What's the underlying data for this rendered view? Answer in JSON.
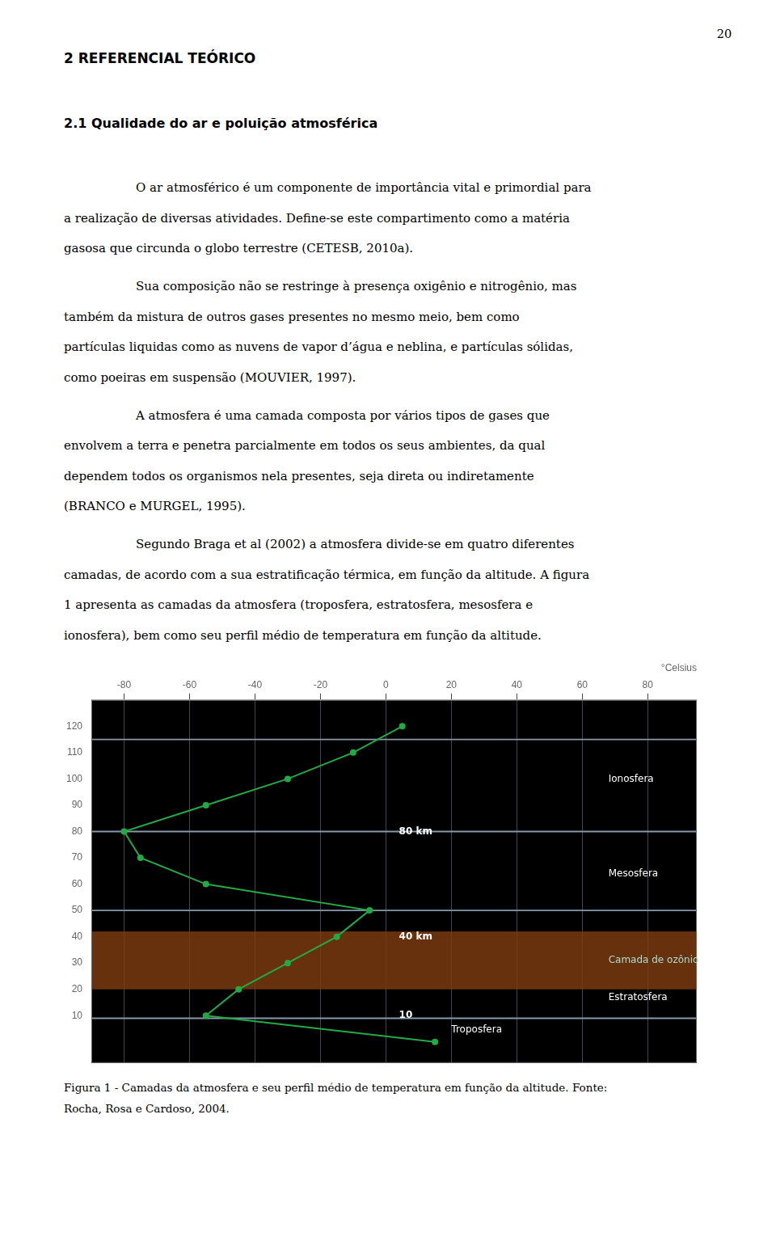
{
  "page_number": "20",
  "headings": [
    "2 REFERENCIAL TEÓRICO",
    "2.1 Qualidade do ar e poluição atmosférica"
  ],
  "paragraphs": [
    [
      "O ar atmosférico é um componente de importância vital e primordial para",
      "a realização de diversas atividades. Define-se este compartimento como a matéria",
      "gasosa que circunda o globo terrestre (CETESB, 2010a)."
    ],
    [
      "Sua composição não se restringe à presença oxigênio e nitrogênio, mas",
      "também da mistura de outros gases presentes no mesmo meio, bem como",
      "partículas liquidas como as nuvens de vapor d’água e neblina, e partículas sólidas,",
      "como poeiras em suspensão (MOUVIER, 1997)."
    ],
    [
      "A atmosfera é uma camada composta por vários tipos de gases que",
      "envolvem a terra e penetra parcialmente em todos os seus ambientes, da qual",
      "dependem todos os organismos nela presentes, seja direta ou indiretamente",
      "(BRANCO e MURGEL, 1995)."
    ],
    [
      "Segundo Braga et al (2002) a atmosfera divide-se em quatro diferentes",
      "camadas, de acordo com a sua estratificação térmica, em função da altitude. A figura",
      "1 apresenta as camadas da atmosfera (troposfera, estratosfera, mesosfera e",
      "ionosfera), bem como seu perfil médio de temperatura em função da altitude."
    ]
  ],
  "caption": [
    "Figura 1 - Camadas da atmosfera e seu perfil médio de temperatura em função da altitude. Fonte:",
    "Rocha, Rosa e Cardoso, 2004."
  ],
  "chart_data": {
    "type": "line",
    "x_label": "°Celsius",
    "x": [
      15,
      -55,
      -45,
      -30,
      -15,
      -5,
      -55,
      -75,
      -80,
      -55,
      -30,
      -10,
      5
    ],
    "values": [
      0,
      10,
      20,
      30,
      40,
      50,
      60,
      70,
      80,
      90,
      100,
      110,
      120
    ],
    "color": "#22aa44",
    "marker": "circle",
    "xlim": [
      -90,
      95
    ],
    "xticks": [
      -80,
      -60,
      -40,
      -20,
      0,
      20,
      40,
      60,
      80
    ],
    "ylim": [
      -8,
      130
    ],
    "yticks": [
      10,
      20,
      30,
      40,
      50,
      60,
      70,
      80,
      90,
      100,
      110,
      120
    ],
    "grid": "x",
    "grid_color": "#444455",
    "plot_background": "#000000",
    "bands": [
      {
        "from": 20,
        "to": 42,
        "color": "#7a3a10"
      }
    ],
    "reference_lines": {
      "values": [
        9,
        50,
        80,
        115
      ],
      "color": "#8899aa"
    },
    "annotations": [
      {
        "text": "Ionosfera",
        "x": 68,
        "y": 100,
        "color": "#ffffff"
      },
      {
        "text": "Mesosfera",
        "x": 68,
        "y": 64,
        "color": "#ffffff"
      },
      {
        "text": "Camada de ozônio",
        "x": 68,
        "y": 31,
        "color": "#aaddcc"
      },
      {
        "text": "Estratosfera",
        "x": 68,
        "y": 17,
        "color": "#ffffff"
      },
      {
        "text": "Troposfera",
        "x": 20,
        "y": 4.5,
        "color": "#ffffff"
      },
      {
        "text": "80 km",
        "x": 4,
        "y": 80,
        "color": "#ffffff",
        "bold": true
      },
      {
        "text": "40 km",
        "x": 4,
        "y": 40,
        "color": "#ffffff",
        "bold": true
      },
      {
        "text": "10",
        "x": 4,
        "y": 10,
        "color": "#ffffff",
        "bold": true
      }
    ]
  }
}
